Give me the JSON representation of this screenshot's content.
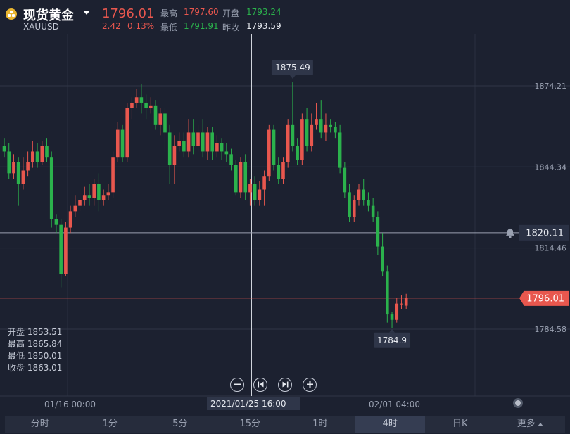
{
  "header": {
    "title": "现货黄金",
    "symbol": "XAUUSD",
    "price": "1796.01",
    "change": "2.42",
    "change_pct": "0.13%",
    "high_label": "最高",
    "high": "1797.60",
    "open_label": "开盘",
    "open": "1793.24",
    "low_label": "最低",
    "low": "1791.91",
    "prev_label": "昨收",
    "prev_close": "1793.59"
  },
  "colors": {
    "up": "#e8574e",
    "down": "#2bb24c",
    "bg": "#1c2130",
    "accent": "#e8574e"
  },
  "ohlc_panel": {
    "open": "开盘 1853.51",
    "high": "最高 1865.84",
    "low": "最低 1850.01",
    "close": "收盘 1863.01"
  },
  "controls": [
    "zoom-out",
    "step-back",
    "step-forward",
    "zoom-in"
  ],
  "x_labels": {
    "left": "01/16 00:00",
    "crosshair": "2021/01/25 16:00 —",
    "right": "02/01 04:00"
  },
  "tabs": [
    "分时",
    "1分",
    "5分",
    "15分",
    "1时",
    "4时",
    "日K",
    "更多"
  ],
  "active_tab": "4时",
  "chart_data": {
    "type": "candlestick",
    "symbol": "XAUUSD",
    "timeframe": "4时",
    "y_ticks": [
      1874.21,
      1844.34,
      1814.46,
      1784.58
    ],
    "ylim": [
      1770.5,
      1884.0
    ],
    "max_label": "1875.49",
    "min_label": "1784.9",
    "alert_line": "1820.11",
    "current_price": "1796.01",
    "grid": true,
    "candles": [
      [
        1852,
        1850,
        1855,
        1848
      ],
      [
        1850,
        1842,
        1853,
        1840
      ],
      [
        1842,
        1846,
        1849,
        1840
      ],
      [
        1846,
        1838,
        1848,
        1830
      ],
      [
        1838,
        1843,
        1848,
        1836
      ],
      [
        1843,
        1846,
        1850,
        1841
      ],
      [
        1846,
        1850,
        1854,
        1844
      ],
      [
        1850,
        1846,
        1853,
        1844
      ],
      [
        1846,
        1852,
        1854,
        1845
      ],
      [
        1852,
        1848,
        1855,
        1846
      ],
      [
        1848,
        1825,
        1850,
        1822
      ],
      [
        1825,
        1823,
        1827,
        1820
      ],
      [
        1823,
        1805,
        1825,
        1800
      ],
      [
        1805,
        1822,
        1824,
        1804
      ],
      [
        1822,
        1828,
        1830,
        1820
      ],
      [
        1828,
        1830,
        1834,
        1826
      ],
      [
        1830,
        1832,
        1836,
        1828
      ],
      [
        1832,
        1834,
        1837,
        1830
      ],
      [
        1834,
        1833,
        1838,
        1830
      ],
      [
        1833,
        1838,
        1840,
        1830
      ],
      [
        1838,
        1832,
        1842,
        1828
      ],
      [
        1832,
        1834,
        1836,
        1830
      ],
      [
        1834,
        1835,
        1838,
        1832
      ],
      [
        1835,
        1848,
        1850,
        1833
      ],
      [
        1848,
        1858,
        1861,
        1846
      ],
      [
        1858,
        1848,
        1860,
        1846
      ],
      [
        1848,
        1866,
        1868,
        1846
      ],
      [
        1866,
        1868,
        1870,
        1862
      ],
      [
        1868,
        1870,
        1873,
        1866
      ],
      [
        1870,
        1868,
        1875,
        1864
      ],
      [
        1868,
        1866,
        1871,
        1862
      ],
      [
        1866,
        1867,
        1870,
        1864
      ],
      [
        1867,
        1860,
        1869,
        1858
      ],
      [
        1860,
        1864,
        1866,
        1856
      ],
      [
        1864,
        1857,
        1866,
        1850
      ],
      [
        1857,
        1845,
        1860,
        1838
      ],
      [
        1845,
        1852,
        1856,
        1838
      ],
      [
        1852,
        1854,
        1857,
        1850
      ],
      [
        1854,
        1850,
        1857,
        1848
      ],
      [
        1850,
        1857,
        1862,
        1848
      ],
      [
        1857,
        1852,
        1862,
        1849
      ],
      [
        1852,
        1857,
        1860,
        1850
      ],
      [
        1857,
        1850,
        1862,
        1848
      ],
      [
        1850,
        1857,
        1859,
        1847
      ],
      [
        1857,
        1850,
        1859,
        1847
      ],
      [
        1850,
        1853,
        1856,
        1848
      ],
      [
        1853,
        1850,
        1855,
        1847
      ],
      [
        1850,
        1849,
        1853,
        1846
      ],
      [
        1849,
        1845,
        1851,
        1843
      ],
      [
        1845,
        1835,
        1847,
        1834
      ],
      [
        1835,
        1846,
        1848,
        1833
      ],
      [
        1846,
        1835,
        1849,
        1832
      ],
      [
        1835,
        1838,
        1840,
        1830
      ],
      [
        1838,
        1832,
        1841,
        1830
      ],
      [
        1832,
        1836,
        1839,
        1830
      ],
      [
        1836,
        1841,
        1843,
        1830
      ],
      [
        1841,
        1858,
        1860,
        1839
      ],
      [
        1858,
        1845,
        1860,
        1843
      ],
      [
        1845,
        1840,
        1848,
        1838
      ],
      [
        1840,
        1846,
        1848,
        1838
      ],
      [
        1846,
        1860,
        1862,
        1844
      ],
      [
        1860,
        1852,
        1875.49,
        1850
      ],
      [
        1852,
        1847,
        1855,
        1845
      ],
      [
        1847,
        1862,
        1864,
        1845
      ],
      [
        1862,
        1852,
        1866,
        1850
      ],
      [
        1852,
        1860,
        1864,
        1850
      ],
      [
        1860,
        1862,
        1868,
        1858
      ],
      [
        1862,
        1857,
        1869,
        1855
      ],
      [
        1857,
        1860,
        1864,
        1854
      ],
      [
        1860,
        1859,
        1862,
        1857
      ],
      [
        1859,
        1857,
        1861,
        1855
      ],
      [
        1857,
        1844,
        1860,
        1842
      ],
      [
        1844,
        1835,
        1846,
        1833
      ],
      [
        1835,
        1826,
        1838,
        1824
      ],
      [
        1826,
        1832,
        1834,
        1824
      ],
      [
        1832,
        1836,
        1838,
        1830
      ],
      [
        1836,
        1832,
        1840,
        1830
      ],
      [
        1832,
        1830,
        1835,
        1828
      ],
      [
        1830,
        1826,
        1833,
        1824
      ],
      [
        1826,
        1815,
        1828,
        1812
      ],
      [
        1815,
        1806,
        1820,
        1804
      ],
      [
        1806,
        1790,
        1808,
        1787
      ],
      [
        1790,
        1788,
        1791,
        1784.9
      ],
      [
        1788,
        1794,
        1796,
        1787
      ],
      [
        1794,
        1794,
        1797,
        1792
      ],
      [
        1793.24,
        1796.01,
        1797.6,
        1791.91
      ]
    ]
  }
}
